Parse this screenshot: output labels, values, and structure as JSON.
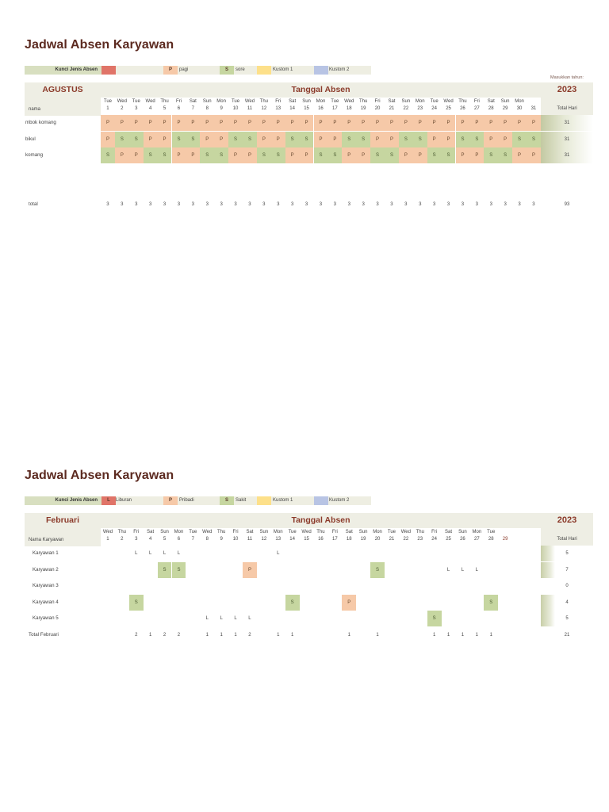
{
  "section1": {
    "title": "Jadwal Absen Karyawan",
    "legend": {
      "label": "Kunci Jenis Absen",
      "items": [
        {
          "code": "",
          "text": "",
          "color": "#e07468"
        },
        {
          "code": "P",
          "text": "pagi",
          "color": "#f6c9a8"
        },
        {
          "code": "S",
          "text": "sore",
          "color": "#c6d6a0"
        },
        {
          "code": "",
          "text": "Kustom 1",
          "color": "#fde08a"
        },
        {
          "code": "",
          "text": "Kustom 2",
          "color": "#b8c4e4"
        }
      ]
    },
    "month": "AGUSTUS",
    "header_title": "Tanggal Absen",
    "year_label": "Masukkan tahun:",
    "year": "2023",
    "name_header": "nama",
    "total_header": "Total Hari",
    "weekdays": [
      "Tue",
      "Wed",
      "Tue",
      "Wed",
      "Thu",
      "Fri",
      "Sat",
      "Sun",
      "Mon",
      "Tue",
      "Wed",
      "Thu",
      "Fri",
      "Sat",
      "Sun",
      "Mon",
      "Tue",
      "Wed",
      "Thu",
      "Fri",
      "Sat",
      "Sun",
      "Mon",
      "Tue",
      "Wed",
      "Thu",
      "Fri",
      "Sat",
      "Sun",
      "Mon",
      ""
    ],
    "days": [
      "1",
      "2",
      "3",
      "4",
      "5",
      "6",
      "7",
      "8",
      "9",
      "10",
      "11",
      "12",
      "13",
      "14",
      "15",
      "16",
      "17",
      "18",
      "19",
      "20",
      "21",
      "22",
      "23",
      "24",
      "25",
      "26",
      "27",
      "28",
      "29",
      "30",
      "31"
    ],
    "rows": [
      {
        "name": "mbok komang",
        "cells": [
          "P",
          "P",
          "P",
          "P",
          "P",
          "P",
          "P",
          "P",
          "P",
          "P",
          "P",
          "P",
          "P",
          "P",
          "P",
          "P",
          "P",
          "P",
          "P",
          "P",
          "P",
          "P",
          "P",
          "P",
          "P",
          "P",
          "P",
          "P",
          "P",
          "P",
          "P"
        ],
        "total": "31"
      },
      {
        "name": "bikul",
        "cells": [
          "P",
          "S",
          "S",
          "P",
          "P",
          "S",
          "S",
          "P",
          "P",
          "S",
          "S",
          "P",
          "P",
          "S",
          "S",
          "P",
          "P",
          "S",
          "S",
          "P",
          "P",
          "S",
          "S",
          "P",
          "P",
          "S",
          "S",
          "P",
          "P",
          "S",
          "S"
        ],
        "total": "31"
      },
      {
        "name": "komang",
        "cells": [
          "S",
          "P",
          "P",
          "S",
          "S",
          "P",
          "P",
          "S",
          "S",
          "P",
          "P",
          "S",
          "S",
          "P",
          "P",
          "S",
          "S",
          "P",
          "P",
          "S",
          "S",
          "P",
          "P",
          "S",
          "S",
          "P",
          "P",
          "S",
          "S",
          "P",
          "P"
        ],
        "total": "31"
      }
    ],
    "total_row": {
      "label": "total",
      "values": [
        "3",
        "3",
        "3",
        "3",
        "3",
        "3",
        "3",
        "3",
        "3",
        "3",
        "3",
        "3",
        "3",
        "3",
        "3",
        "3",
        "3",
        "3",
        "3",
        "3",
        "3",
        "3",
        "3",
        "3",
        "3",
        "3",
        "3",
        "3",
        "3",
        "3",
        "3"
      ],
      "total": "93"
    }
  },
  "section2": {
    "title": "Jadwal Absen Karyawan",
    "legend": {
      "label": "Kunci Jenis Absen",
      "items": [
        {
          "code": "L",
          "text": "Liburan",
          "color": "#e07468"
        },
        {
          "code": "P",
          "text": "Pribadi",
          "color": "#f6c9a8"
        },
        {
          "code": "S",
          "text": "Sakit",
          "color": "#c6d6a0"
        },
        {
          "code": "",
          "text": "Kustom 1",
          "color": "#fde08a"
        },
        {
          "code": "",
          "text": "Kustom 2",
          "color": "#b8c4e4"
        }
      ]
    },
    "month": "Februari",
    "header_title": "Tanggal Absen",
    "year": "2023",
    "name_header": "Nama Karyawan",
    "total_header": "Total Hari",
    "weekdays": [
      "Wed",
      "Thu",
      "Fri",
      "Sat",
      "Sun",
      "Mon",
      "Tue",
      "Wed",
      "Thu",
      "Fri",
      "Sat",
      "Sun",
      "Mon",
      "Tue",
      "Wed",
      "Thu",
      "Fri",
      "Sat",
      "Sun",
      "Mon",
      "Tue",
      "Wed",
      "Thu",
      "Fri",
      "Sat",
      "Sun",
      "Mon",
      "Tue",
      ""
    ],
    "days": [
      "1",
      "2",
      "3",
      "4",
      "5",
      "6",
      "7",
      "8",
      "9",
      "10",
      "11",
      "12",
      "13",
      "14",
      "15",
      "16",
      "17",
      "18",
      "19",
      "20",
      "21",
      "22",
      "23",
      "24",
      "25",
      "26",
      "27",
      "28",
      "29"
    ],
    "rows": [
      {
        "name": "Karyawan 1",
        "cells": [
          "",
          "",
          "L",
          "L",
          "L",
          "L",
          "",
          "",
          "",
          "",
          "",
          "",
          "L",
          "",
          "",
          "",
          "",
          "",
          "",
          "",
          "",
          "",
          "",
          "",
          "",
          "",
          "",
          "",
          ""
        ],
        "total": "5"
      },
      {
        "name": "Karyawan 2",
        "cells": [
          "",
          "",
          "",
          "",
          "S",
          "S",
          "",
          "",
          "",
          "",
          "P",
          "",
          "",
          "",
          "",
          "",
          "",
          "",
          "",
          "S",
          "",
          "",
          "",
          "",
          "L",
          "L",
          "L",
          "",
          ""
        ],
        "total": "7"
      },
      {
        "name": "Karyawan 3",
        "cells": [
          "",
          "",
          "",
          "",
          "",
          "",
          "",
          "",
          "",
          "",
          "",
          "",
          "",
          "",
          "",
          "",
          "",
          "",
          "",
          "",
          "",
          "",
          "",
          "",
          "",
          "",
          "",
          "",
          ""
        ],
        "total": "0"
      },
      {
        "name": "Karyawan 4",
        "cells": [
          "",
          "",
          "S",
          "",
          "",
          "",
          "",
          "",
          "",
          "",
          "",
          "",
          "",
          "S",
          "",
          "",
          "",
          "P",
          "",
          "",
          "",
          "",
          "",
          "",
          "",
          "",
          "",
          "S",
          ""
        ],
        "total": "4"
      },
      {
        "name": "Karyawan 5",
        "cells": [
          "",
          "",
          "",
          "",
          "",
          "",
          "",
          "L",
          "L",
          "L",
          "L",
          "",
          "",
          "",
          "",
          "",
          "",
          "",
          "",
          "",
          "",
          "",
          "",
          "S",
          "",
          "",
          "",
          "",
          ""
        ],
        "total": "5"
      }
    ],
    "total_row": {
      "label": "Total Februari",
      "values": [
        "",
        "",
        "2",
        "1",
        "2",
        "2",
        "",
        "1",
        "1",
        "1",
        "2",
        "",
        "1",
        "1",
        "",
        "",
        "",
        "1",
        "",
        "1",
        "",
        "",
        "",
        "1",
        "1",
        "1",
        "1",
        "1",
        ""
      ],
      "total": "21"
    }
  }
}
